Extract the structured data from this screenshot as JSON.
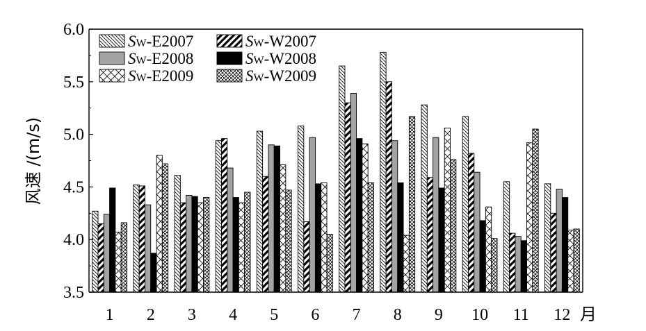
{
  "chart_data": {
    "type": "bar",
    "title": "",
    "xlabel": "月",
    "ylabel": "风速 /(m/s)",
    "ylim": [
      3.5,
      6.0
    ],
    "yticks": [
      "3.5",
      "4.0",
      "4.5",
      "5.0",
      "5.5",
      "6.0"
    ],
    "categories": [
      "1",
      "2",
      "3",
      "4",
      "5",
      "6",
      "7",
      "8",
      "9",
      "10",
      "11",
      "12"
    ],
    "grid": false,
    "legend_position": "top-left",
    "series": [
      {
        "name": "SW-E2007",
        "label_main": "S",
        "label_sub": "W",
        "label_rest": "-E2007",
        "pattern": "back-hatch",
        "values": [
          4.27,
          4.52,
          4.61,
          4.94,
          5.03,
          5.08,
          5.65,
          5.78,
          5.28,
          5.17,
          4.55,
          4.53
        ]
      },
      {
        "name": "SW-W2007",
        "label_main": "S",
        "label_sub": "W",
        "label_rest": "-W2007",
        "pattern": "bold-hatch",
        "values": [
          4.15,
          4.51,
          4.35,
          4.96,
          4.6,
          4.17,
          5.3,
          5.5,
          4.59,
          4.82,
          4.06,
          4.25
        ]
      },
      {
        "name": "SW-E2008",
        "label_main": "S",
        "label_sub": "W",
        "label_rest": "-E2008",
        "pattern": "gray",
        "values": [
          4.24,
          4.33,
          4.42,
          4.68,
          4.9,
          4.97,
          5.39,
          4.94,
          4.97,
          4.64,
          4.03,
          4.48
        ]
      },
      {
        "name": "SW-W2008",
        "label_main": "S",
        "label_sub": "W",
        "label_rest": "-W2008",
        "pattern": "black",
        "values": [
          4.49,
          3.87,
          4.41,
          4.4,
          4.89,
          4.53,
          4.96,
          4.54,
          4.49,
          4.18,
          3.99,
          4.4
        ]
      },
      {
        "name": "SW-E2009",
        "label_main": "S",
        "label_sub": "W",
        "label_rest": "-E2009",
        "pattern": "cross",
        "values": [
          4.07,
          4.8,
          4.35,
          4.35,
          4.71,
          4.54,
          4.91,
          4.04,
          5.06,
          4.31,
          4.92,
          4.09
        ]
      },
      {
        "name": "SW-W2009",
        "label_main": "S",
        "label_sub": "W",
        "label_rest": "-W2009",
        "pattern": "dense-cross",
        "values": [
          4.16,
          4.72,
          4.4,
          4.45,
          4.47,
          4.05,
          4.54,
          5.17,
          4.76,
          4.01,
          5.05,
          4.1
        ]
      }
    ]
  }
}
